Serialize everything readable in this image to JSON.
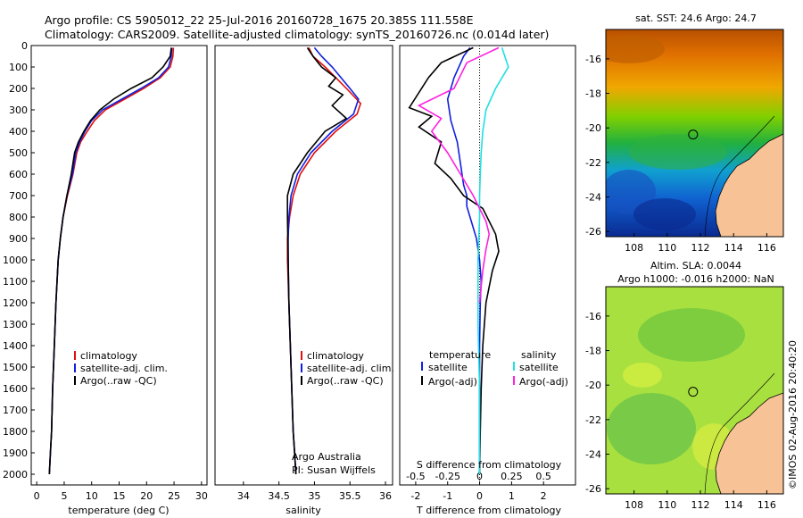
{
  "header": {
    "line1": "Argo profile: CS 5905012_22 25-Jul-2016 20160728_1675 20.385S 111.558E",
    "line2": "Climatology: CARS2009. Satellite-adjusted climatology: synTS_20160726.nc (0.014d later)"
  },
  "side_text": "©IMOS 02-Aug-2016 20:40:20",
  "colors": {
    "climatology": "#e01010",
    "satellite": "#1020e0",
    "argo": "#000000",
    "sal_satellite": "#20e0e0",
    "sal_argo": "#ff20e0",
    "land": "#f7c396",
    "frame": "#000000"
  },
  "chart_data": [
    {
      "type": "line",
      "id": "temperature",
      "xlabel": "temperature (deg C)",
      "ylabel": "",
      "xlim": [
        -1,
        31
      ],
      "ylim": [
        2050,
        0
      ],
      "x_ticks": [
        0,
        5,
        10,
        15,
        20,
        25,
        30
      ],
      "y_ticks": [
        0,
        100,
        200,
        300,
        400,
        500,
        600,
        700,
        800,
        900,
        1000,
        1100,
        1200,
        1300,
        1400,
        1500,
        1600,
        1700,
        1800,
        1900,
        2000
      ],
      "legend": [
        "climatology",
        "satellite-adj. clim.",
        "Argo(..raw -QC)"
      ],
      "series": [
        {
          "name": "climatology",
          "color": "#e01010",
          "x": [
            24.9,
            24.8,
            24.3,
            22.5,
            19.5,
            16.0,
            12.5,
            10.5,
            9.2,
            8.0,
            7.3,
            6.6,
            5.6,
            4.8,
            4.3,
            3.9,
            3.5,
            3.2,
            2.9,
            2.7,
            2.5,
            2.3
          ],
          "y": [
            10,
            50,
            100,
            150,
            200,
            250,
            300,
            350,
            400,
            450,
            500,
            600,
            700,
            800,
            900,
            1000,
            1200,
            1400,
            1600,
            1800,
            1900,
            2000
          ]
        },
        {
          "name": "satellite-adj. clim.",
          "color": "#1020e0",
          "x": [
            24.6,
            24.5,
            24.0,
            22.2,
            19.0,
            15.5,
            12.0,
            10.0,
            8.8,
            7.8,
            7.1,
            6.5,
            5.5,
            4.8,
            4.3,
            3.9,
            3.5,
            3.2,
            2.9,
            2.7,
            2.5,
            2.3
          ],
          "y": [
            10,
            50,
            100,
            150,
            200,
            250,
            300,
            350,
            400,
            450,
            500,
            600,
            700,
            800,
            900,
            1000,
            1200,
            1400,
            1600,
            1800,
            1900,
            2000
          ]
        },
        {
          "name": "Argo(..raw -QC)",
          "color": "#000000",
          "x": [
            24.5,
            24.3,
            23.0,
            21.0,
            17.2,
            14.0,
            11.5,
            9.8,
            8.6,
            7.6,
            6.9,
            6.3,
            5.5,
            4.8,
            4.3,
            3.9,
            3.5,
            3.2,
            2.9,
            2.7,
            2.5,
            2.3
          ],
          "y": [
            10,
            50,
            100,
            150,
            200,
            250,
            300,
            350,
            400,
            450,
            500,
            600,
            700,
            800,
            900,
            1000,
            1200,
            1400,
            1600,
            1800,
            1900,
            2000
          ]
        }
      ]
    },
    {
      "type": "line",
      "id": "salinity",
      "xlabel": "salinity",
      "xlim": [
        33.6,
        36.1
      ],
      "ylim": [
        2050,
        0
      ],
      "x_ticks": [
        34,
        34.5,
        35,
        35.5,
        36
      ],
      "legend": [
        "climatology",
        "satellite-adj. clim.",
        "Argo(..raw -QC)"
      ],
      "annotation": [
        "Argo Australia",
        "PI: Susan Wijffels"
      ],
      "series": [
        {
          "name": "climatology",
          "color": "#e01010",
          "x": [
            34.92,
            34.98,
            35.15,
            35.45,
            35.65,
            35.6,
            35.3,
            35.0,
            34.8,
            34.7,
            34.65,
            34.62,
            34.62,
            34.64,
            34.66,
            34.68,
            34.7,
            34.72,
            34.73,
            34.74
          ],
          "y": [
            10,
            50,
            100,
            200,
            270,
            320,
            400,
            500,
            600,
            700,
            800,
            900,
            1000,
            1200,
            1400,
            1600,
            1800,
            1900,
            1950,
            2000
          ]
        },
        {
          "name": "satellite-adj. clim.",
          "color": "#1020e0",
          "x": [
            35.0,
            35.1,
            35.25,
            35.5,
            35.62,
            35.55,
            35.25,
            34.95,
            34.76,
            34.67,
            34.64,
            34.63,
            34.63,
            34.64,
            34.66,
            34.68,
            34.7,
            34.72,
            34.73,
            34.74
          ],
          "y": [
            10,
            50,
            100,
            200,
            250,
            320,
            400,
            500,
            600,
            700,
            800,
            900,
            1000,
            1200,
            1400,
            1600,
            1800,
            1900,
            1950,
            2000
          ]
        },
        {
          "name": "Argo(..raw -QC)",
          "color": "#000000",
          "x": [
            34.9,
            34.98,
            35.1,
            35.3,
            35.2,
            35.4,
            35.25,
            35.45,
            35.15,
            34.9,
            34.7,
            34.62,
            34.62,
            34.63,
            34.64,
            34.66,
            34.68,
            34.7,
            34.72,
            34.73,
            34.74
          ],
          "y": [
            10,
            50,
            100,
            150,
            190,
            230,
            280,
            340,
            400,
            500,
            600,
            700,
            800,
            1000,
            1200,
            1400,
            1600,
            1800,
            1900,
            1950,
            2000
          ]
        }
      ]
    },
    {
      "type": "line",
      "id": "difference",
      "xlabel": "T difference from climatology",
      "xlabel_top": "S difference from climatology",
      "xlim": [
        -2.5,
        3.0
      ],
      "ylim": [
        2050,
        0
      ],
      "x_ticks": [
        -2,
        -1,
        0,
        1,
        2
      ],
      "s_ticks": [
        "-0.5",
        "-0.25",
        "0",
        "0.25",
        "0.5"
      ],
      "legend_temperature": [
        "temperature",
        "satellite",
        "Argo(-adj)"
      ],
      "legend_salinity": [
        "salinity",
        "satellite",
        "Argo(-adj)"
      ],
      "series": [
        {
          "name": "temperature satellite",
          "color": "#1020e0",
          "x": [
            -0.3,
            -0.5,
            -0.8,
            -1.0,
            -0.9,
            -0.7,
            -0.6,
            -0.5,
            -0.4,
            -0.4,
            -0.3,
            -0.1,
            0.0,
            0.05,
            0.02,
            0.0,
            0.0,
            0.0,
            0.0,
            0.0
          ],
          "y": [
            10,
            50,
            150,
            250,
            350,
            450,
            550,
            650,
            700,
            750,
            800,
            900,
            1000,
            1100,
            1200,
            1400,
            1600,
            1800,
            1900,
            2000
          ]
        },
        {
          "name": "temperature Argo(-adj)",
          "color": "#000000",
          "x": [
            -0.2,
            -1.2,
            -1.6,
            -2.2,
            -1.5,
            -1.9,
            -1.2,
            -1.4,
            -0.9,
            -0.5,
            0.1,
            0.3,
            0.5,
            0.6,
            0.4,
            0.2,
            0.1,
            0.05,
            0.02,
            0.0
          ],
          "y": [
            10,
            80,
            150,
            290,
            330,
            380,
            450,
            550,
            620,
            700,
            760,
            820,
            880,
            960,
            1050,
            1200,
            1400,
            1600,
            1800,
            2000
          ]
        },
        {
          "name": "salinity satellite",
          "color": "#20e0e0",
          "x": [
            0.7,
            0.9,
            0.5,
            0.2,
            0.1,
            0.05,
            0.02,
            0.0,
            0.0,
            -0.05,
            -0.05,
            0.0,
            0.0
          ],
          "y": [
            10,
            100,
            200,
            300,
            400,
            500,
            600,
            700,
            800,
            1000,
            1300,
            1600,
            2000
          ]
        },
        {
          "name": "salinity Argo(-adj)",
          "color": "#ff20e0",
          "x": [
            0.6,
            -0.4,
            -0.8,
            -1.9,
            -1.2,
            -1.5,
            -1.0,
            -0.6,
            -0.2,
            0.0,
            0.2,
            0.3,
            0.2,
            0.1,
            0.0
          ],
          "y": [
            10,
            80,
            200,
            280,
            340,
            400,
            500,
            600,
            700,
            760,
            820,
            880,
            950,
            1050,
            1200
          ]
        }
      ]
    },
    {
      "type": "heatmap",
      "id": "sst-map",
      "title": "sat. SST: 24.6 Argo: 24.7",
      "xlim": [
        106.3,
        117
      ],
      "ylim": [
        -26.3,
        -14.3
      ],
      "x_ticks": [
        108,
        110,
        112,
        114,
        116
      ],
      "y_ticks": [
        -16,
        -18,
        -20,
        -22,
        -24,
        -26
      ],
      "marker": {
        "lon": 111.558,
        "lat": -20.385
      }
    },
    {
      "type": "heatmap",
      "id": "sla-map",
      "title_line1": "Altim. SLA: 0.0044",
      "title_line2": "Argo h1000: -0.016 h2000: NaN",
      "xlim": [
        106.3,
        117
      ],
      "ylim": [
        -26.3,
        -14.3
      ],
      "x_ticks": [
        108,
        110,
        112,
        114,
        116
      ],
      "y_ticks": [
        -16,
        -18,
        -20,
        -22,
        -24,
        -26
      ],
      "marker": {
        "lon": 111.558,
        "lat": -20.385
      }
    }
  ]
}
